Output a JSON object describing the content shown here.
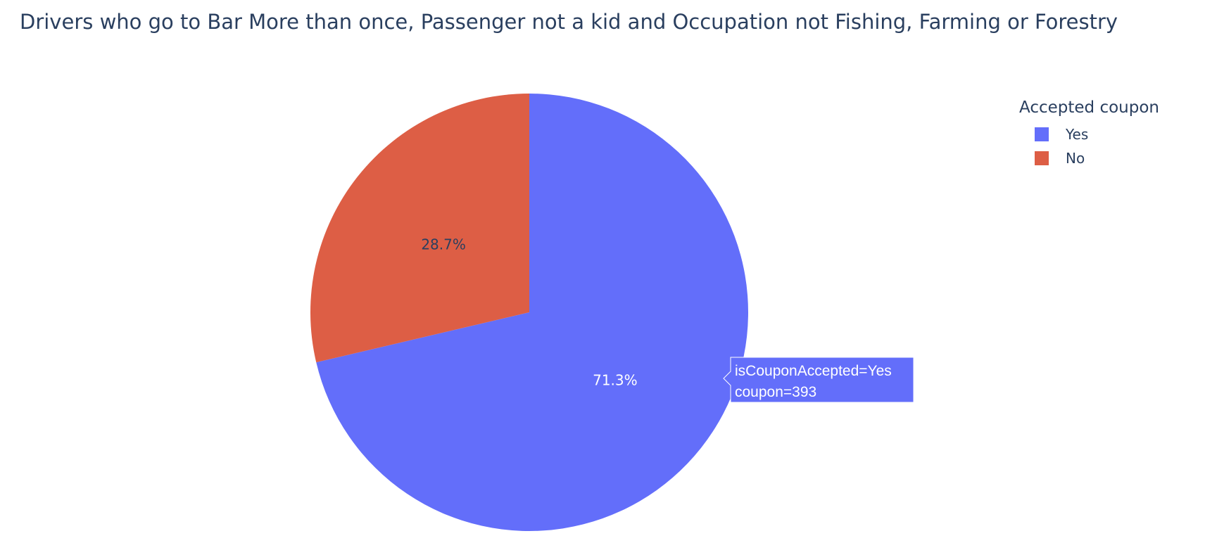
{
  "chart_data": {
    "type": "pie",
    "title": "Drivers who go to Bar More than once, Passenger not a kid and Occupation not Fishing, Farming or Forestry",
    "legend_title": "Accepted coupon",
    "legend_position": "top-right",
    "slices": [
      {
        "label": "Yes",
        "value": 393,
        "percent_label": "71.3%",
        "color": "#636efa",
        "text_color": "#ffffff"
      },
      {
        "label": "No",
        "value": 158,
        "percent_label": "28.7%",
        "color": "#dd5e45",
        "text_color": "#2a3f5f"
      }
    ],
    "hover": {
      "slice": "Yes",
      "lines": [
        "isCouponAccepted=Yes",
        "coupon=393"
      ]
    }
  }
}
